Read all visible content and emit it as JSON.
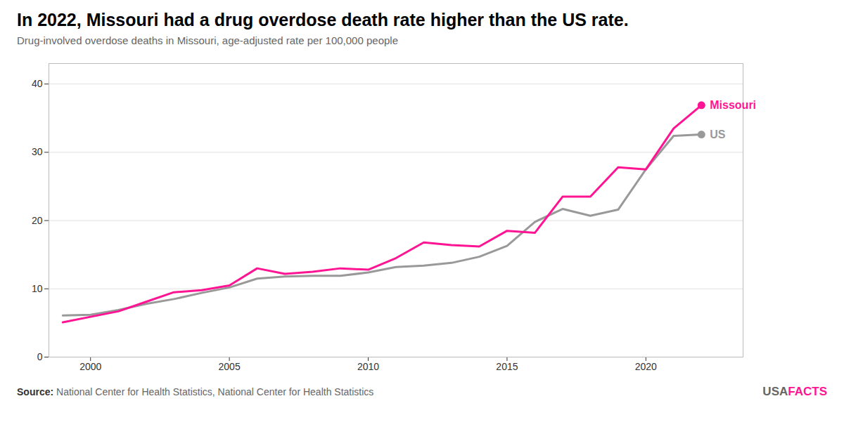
{
  "chart_data": {
    "type": "line",
    "title": "In 2022, Missouri had a drug overdose death rate higher than the US rate.",
    "subtitle": "Drug-involved overdose deaths in Missouri, age-adjusted rate per 100,000 people",
    "source": "Source: National Center for Health Statistics, National Center for Health Statistics",
    "annotations": [
      {
        "text": "USA",
        "color": "#666666"
      },
      {
        "text": "FACTS",
        "color": "#FF1493"
      }
    ],
    "x": [
      1999,
      2000,
      2001,
      2002,
      2003,
      2004,
      2005,
      2006,
      2007,
      2008,
      2009,
      2010,
      2011,
      2012,
      2013,
      2014,
      2015,
      2016,
      2017,
      2018,
      2019,
      2020,
      2021,
      2022
    ],
    "series": [
      {
        "name": "Missouri",
        "color": "#FF1493",
        "values": [
          5.1,
          5.9,
          6.7,
          8.1,
          9.5,
          9.8,
          10.5,
          13.0,
          12.2,
          12.5,
          13.0,
          12.8,
          14.5,
          16.8,
          16.4,
          16.2,
          18.5,
          18.2,
          23.5,
          23.5,
          27.8,
          27.5,
          33.5,
          36.9
        ]
      },
      {
        "name": "US",
        "color": "#999999",
        "values": [
          6.1,
          6.2,
          6.9,
          7.8,
          8.5,
          9.4,
          10.2,
          11.5,
          11.8,
          11.9,
          11.9,
          12.4,
          13.2,
          13.4,
          13.8,
          14.7,
          16.3,
          19.8,
          21.7,
          20.7,
          21.6,
          27.5,
          32.4,
          32.6
        ]
      }
    ],
    "xlim": [
      1998.5,
      2023.5
    ],
    "xticks": [
      2000,
      2005,
      2010,
      2015,
      2020
    ],
    "ylim": [
      0,
      43
    ],
    "yticks": [
      0,
      10,
      20,
      30,
      40
    ],
    "grid": "y"
  }
}
